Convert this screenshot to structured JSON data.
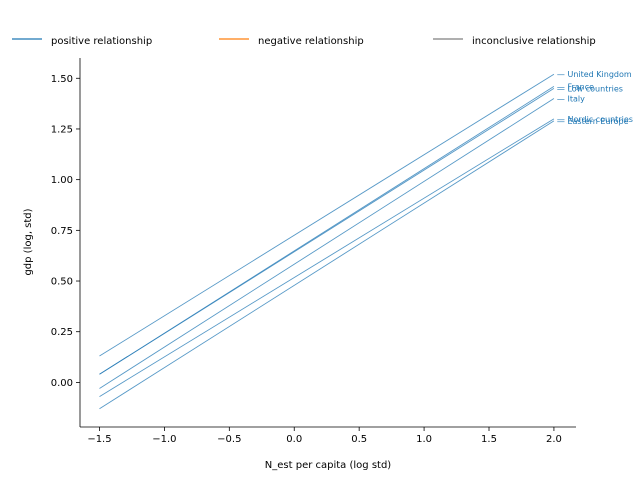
{
  "chart_data": {
    "type": "line",
    "xlabel": "N_est per capita (log std)",
    "ylabel": "gdp (log, std)",
    "xlim": [
      -1.65,
      2.17
    ],
    "ylim": [
      -0.22,
      1.6
    ],
    "xticks": [
      -1.5,
      -1.0,
      -0.5,
      0.0,
      0.5,
      1.0,
      1.5,
      2.0
    ],
    "xtick_labels": [
      "−1.5",
      "−1.0",
      "−0.5",
      "0.0",
      "0.5",
      "1.0",
      "1.5",
      "2.0"
    ],
    "yticks": [
      0.0,
      0.25,
      0.5,
      0.75,
      1.0,
      1.25,
      1.5
    ],
    "ytick_labels": [
      "0.00",
      "0.25",
      "0.50",
      "0.75",
      "1.00",
      "1.25",
      "1.50"
    ],
    "grid": false,
    "legend": {
      "placement": "top",
      "entries": [
        {
          "label": "positive relationship",
          "color": "#1f77b4"
        },
        {
          "label": "negative relationship",
          "color": "#ff7f0e"
        },
        {
          "label": "inconclusive relationship",
          "color": "#7f7f7f"
        }
      ]
    },
    "series": [
      {
        "name": "United Kingdom",
        "label_text": "— United Kingdom",
        "category": "positive relationship",
        "x": [
          -1.5,
          2.0
        ],
        "y": [
          0.13,
          1.52
        ]
      },
      {
        "name": "France",
        "label_text": "— France",
        "category": "positive relationship",
        "x": [
          -1.5,
          2.0
        ],
        "y": [
          0.04,
          1.46
        ]
      },
      {
        "name": "Low countries",
        "label_text": "— Low countries",
        "category": "positive relationship",
        "x": [
          -1.5,
          2.0
        ],
        "y": [
          0.04,
          1.45
        ]
      },
      {
        "name": "Italy",
        "label_text": "— Italy",
        "category": "positive relationship",
        "x": [
          -1.5,
          2.0
        ],
        "y": [
          -0.03,
          1.4
        ]
      },
      {
        "name": "Nordic countries",
        "label_text": "— Nordic countries",
        "category": "positive relationship",
        "x": [
          -1.5,
          2.0
        ],
        "y": [
          -0.07,
          1.3
        ]
      },
      {
        "name": "Eastern Europe",
        "label_text": "— Eastern Europe",
        "category": "positive relationship",
        "x": [
          -1.5,
          2.0
        ],
        "y": [
          -0.13,
          1.29
        ]
      }
    ],
    "colors": {
      "line": "#1f77b4",
      "label": "#1f77b4",
      "axis": "#000000"
    }
  }
}
